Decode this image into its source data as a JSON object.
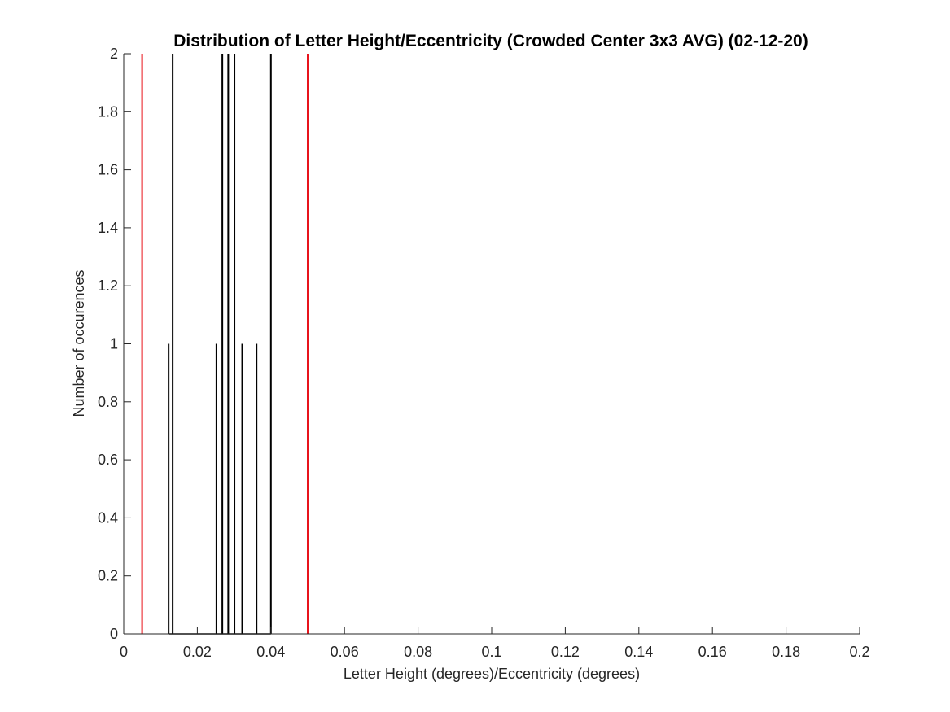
{
  "chart_data": {
    "type": "histogram",
    "title": "Distribution of Letter Height/Eccentricity (Crowded Center 3x3 AVG) (02-12-20)",
    "xlabel": "Letter Height (degrees)/Eccentricity (degrees)",
    "ylabel": "Number of occurences",
    "xlim": [
      0,
      0.2
    ],
    "ylim": [
      0,
      2
    ],
    "xticks": [
      0,
      0.02,
      0.04,
      0.06,
      0.08,
      0.1,
      0.12,
      0.14,
      0.16,
      0.18,
      0.2
    ],
    "xtick_labels": [
      "0",
      "0.02",
      "0.04",
      "0.06",
      "0.08",
      "0.1",
      "0.12",
      "0.14",
      "0.16",
      "0.18",
      "0.2"
    ],
    "yticks": [
      0,
      0.2,
      0.4,
      0.6,
      0.8,
      1,
      1.2,
      1.4,
      1.6,
      1.8,
      2
    ],
    "ytick_labels": [
      "0",
      "0.2",
      "0.4",
      "0.6",
      "0.8",
      "1",
      "1.2",
      "1.4",
      "1.6",
      "1.8",
      "2"
    ],
    "grid": false,
    "bar_color": "#000000",
    "bars": [
      {
        "x": 0.0122,
        "count": 1
      },
      {
        "x": 0.0133,
        "count": 2
      },
      {
        "x": 0.0252,
        "count": 1
      },
      {
        "x": 0.0268,
        "count": 2
      },
      {
        "x": 0.0284,
        "count": 2
      },
      {
        "x": 0.0301,
        "count": 2
      },
      {
        "x": 0.0322,
        "count": 1
      },
      {
        "x": 0.0361,
        "count": 1
      },
      {
        "x": 0.04,
        "count": 2
      }
    ],
    "reference_lines": [
      {
        "x": 0.005,
        "color": "#e8141c"
      },
      {
        "x": 0.05,
        "color": "#e8141c"
      }
    ]
  }
}
